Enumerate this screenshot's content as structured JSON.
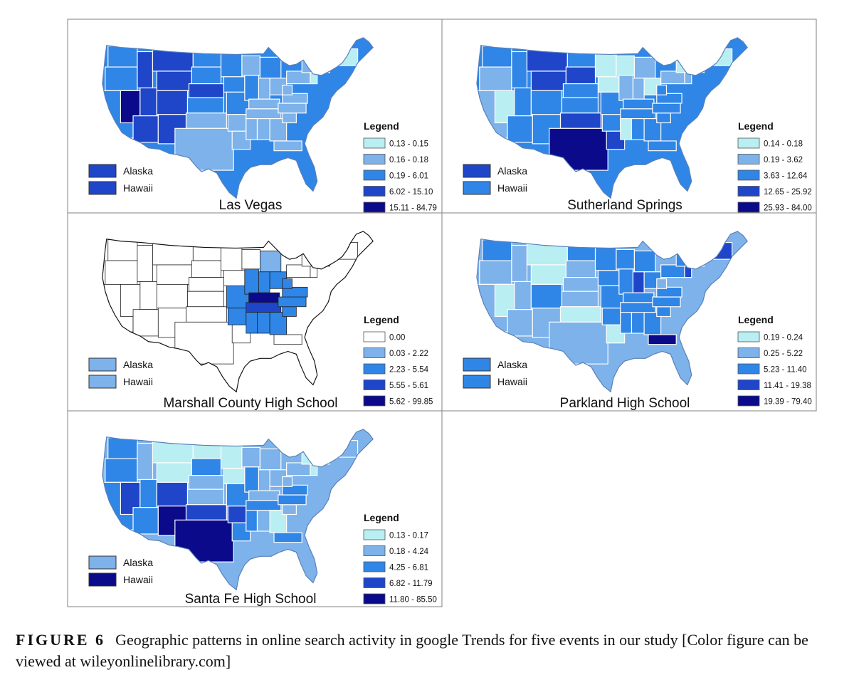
{
  "colors": {
    "c1": "#b9eef2",
    "c2": "#7db2ea",
    "c3": "#2f86e6",
    "c4": "#1f45c9",
    "c5": "#0a0a8a",
    "white": "#ffffff"
  },
  "legend_title": "Legend",
  "panels": [
    {
      "title": "Las Vegas",
      "alaska_label": "Alaska",
      "hawaii_label": "Hawaii",
      "alaska_class": 4,
      "hawaii_class": 4,
      "legend": [
        "0.13 - 0.15",
        "0.16 - 0.18",
        "0.19 - 6.01",
        "6.02 - 15.10",
        "15.11 - 84.79"
      ],
      "legend_classes": [
        1,
        2,
        3,
        4,
        5
      ]
    },
    {
      "title": "Sutherland Springs",
      "alaska_label": "Alaska",
      "hawaii_label": "Hawaii",
      "alaska_class": 4,
      "hawaii_class": 3,
      "legend": [
        "0.14 - 0.18",
        "0.19 - 3.62",
        "3.63 - 12.64",
        "12.65 - 25.92",
        "25.93 - 84.00"
      ],
      "legend_classes": [
        1,
        2,
        3,
        4,
        5
      ]
    },
    {
      "title": "Marshall County High School",
      "alaska_label": "Alaska",
      "hawaii_label": "Hawaii",
      "alaska_class": 2,
      "hawaii_class": 2,
      "legend": [
        "0.00",
        "0.03 - 2.22",
        "2.23 - 5.54",
        "5.55 - 5.61",
        "5.62 - 99.85"
      ],
      "legend_classes": [
        0,
        2,
        3,
        4,
        5
      ]
    },
    {
      "title": "Parkland High School",
      "alaska_label": "Alaska",
      "hawaii_label": "Hawaii",
      "alaska_class": 3,
      "hawaii_class": 3,
      "legend": [
        "0.19 - 0.24",
        "0.25 - 5.22",
        "5.23 - 11.40",
        "11.41 - 19.38",
        "19.39 - 79.40"
      ],
      "legend_classes": [
        1,
        2,
        3,
        4,
        5
      ]
    },
    {
      "title": "Santa Fe High School",
      "alaska_label": "Alaska",
      "hawaii_label": "Hawaii",
      "alaska_class": 2,
      "hawaii_class": 5,
      "legend": [
        "0.13 - 0.17",
        "0.18 - 4.24",
        "4.25 - 6.81",
        "6.82 - 11.79",
        "11.80 - 85.50"
      ],
      "legend_classes": [
        1,
        2,
        3,
        4,
        5
      ]
    }
  ],
  "caption": {
    "label": "FIGURE 6",
    "text": "Geographic patterns in online search activity in google Trends for five events in our study [Color figure can be viewed at wileyonlinelibrary.com]"
  }
}
